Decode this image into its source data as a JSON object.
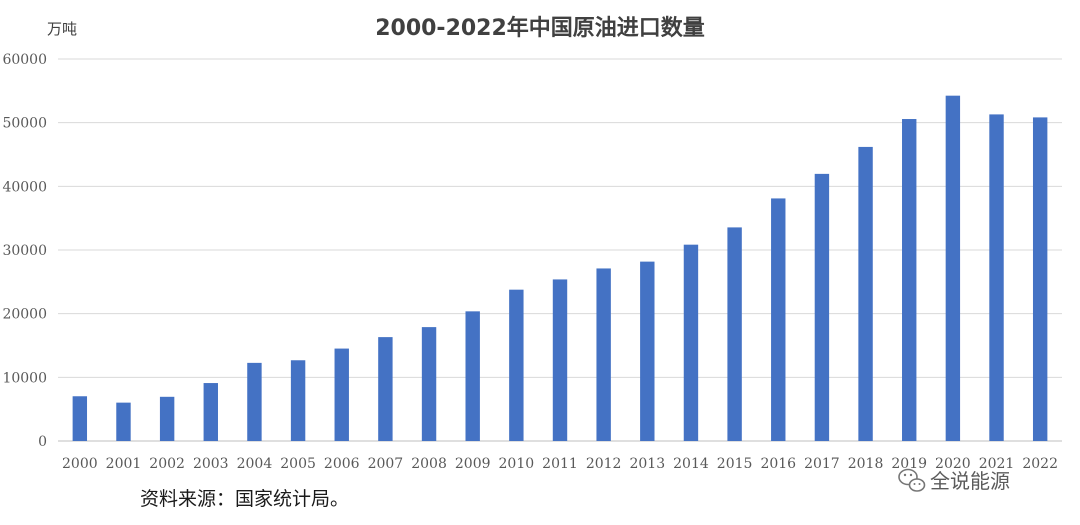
{
  "chart_data": {
    "type": "bar",
    "title": "2000-2022年中国原油进口数量",
    "ylabel": "万吨",
    "xlabel": "",
    "ylim": [
      0,
      60000
    ],
    "yticks": [
      0,
      10000,
      20000,
      30000,
      40000,
      50000,
      60000
    ],
    "grid": true,
    "categories": [
      "2000",
      "2001",
      "2002",
      "2003",
      "2004",
      "2005",
      "2006",
      "2007",
      "2008",
      "2009",
      "2010",
      "2011",
      "2012",
      "2013",
      "2014",
      "2015",
      "2016",
      "2017",
      "2018",
      "2019",
      "2020",
      "2021",
      "2022"
    ],
    "values": [
      7027,
      6026,
      6941,
      9102,
      12272,
      12682,
      14517,
      16317,
      17888,
      20365,
      23768,
      25378,
      27102,
      28174,
      30837,
      33550,
      38101,
      41957,
      46190,
      50572,
      54239,
      51298,
      50828
    ],
    "bar_color": "#4472c4"
  },
  "footer": {
    "source": "资料来源：国家统计局。"
  },
  "watermark": {
    "label": "全说能源",
    "icon": "wechat-icon"
  }
}
